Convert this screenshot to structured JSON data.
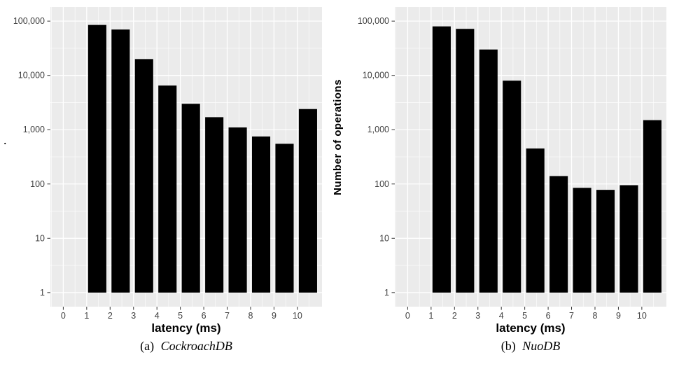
{
  "page": {
    "background": "#FFFFFF",
    "stray_mark": "."
  },
  "chart_data": [
    {
      "type": "bar",
      "title": "",
      "caption_index": "(a)",
      "caption_name": "CockroachDB",
      "xlabel": "latency (ms)",
      "ylabel": "",
      "y_scale": "log10",
      "ylim": [
        1,
        100000
      ],
      "x_ticks": [
        0,
        1,
        2,
        3,
        4,
        5,
        6,
        7,
        8,
        9,
        10
      ],
      "y_ticks": [
        1,
        10,
        100,
        1000,
        10000,
        100000
      ],
      "y_tick_labels": [
        "1",
        "10",
        "100",
        "1,000",
        "10,000",
        "100,000"
      ],
      "bins_start": [
        1,
        2,
        3,
        4,
        5,
        6,
        7,
        8,
        9,
        10
      ],
      "values": [
        85000,
        70000,
        20000,
        6500,
        3000,
        1700,
        1100,
        750,
        550,
        2400
      ],
      "grid": true,
      "legend": "none",
      "bar_color": "#000000",
      "panel_color": "#EBEBEB",
      "grid_color": "#FFFFFF",
      "tick_color": "#333333"
    },
    {
      "type": "bar",
      "title": "",
      "caption_index": "(b)",
      "caption_name": "NuoDB",
      "xlabel": "latency (ms)",
      "ylabel": "Number of operations",
      "y_scale": "log10",
      "ylim": [
        1,
        100000
      ],
      "x_ticks": [
        0,
        1,
        2,
        3,
        4,
        5,
        6,
        7,
        8,
        9,
        10
      ],
      "y_ticks": [
        1,
        10,
        100,
        1000,
        10000,
        100000
      ],
      "y_tick_labels": [
        "1",
        "10",
        "100",
        "1,000",
        "10,000",
        "100,000"
      ],
      "bins_start": [
        1,
        2,
        3,
        4,
        5,
        6,
        7,
        8,
        9,
        10
      ],
      "values": [
        80000,
        72000,
        30000,
        8000,
        450,
        140,
        85,
        78,
        95,
        1500
      ],
      "grid": true,
      "legend": "none",
      "bar_color": "#000000",
      "panel_color": "#EBEBEB",
      "grid_color": "#FFFFFF",
      "tick_color": "#333333"
    }
  ]
}
